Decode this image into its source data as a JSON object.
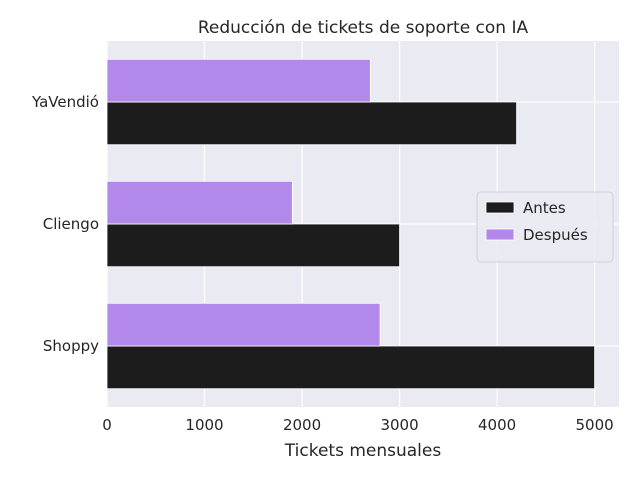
{
  "chart_data": {
    "type": "bar",
    "orientation": "horizontal",
    "title": "Reducción de tickets de soporte con IA",
    "xlabel": "Tickets mensuales",
    "ylabel": "",
    "categories": [
      "Shoppy",
      "Cliengo",
      "YaVendió"
    ],
    "series": [
      {
        "name": "Antes",
        "values": [
          5000,
          3000,
          4200
        ],
        "color": "#1c1c1c"
      },
      {
        "name": "Después",
        "values": [
          2800,
          1900,
          2700
        ],
        "color": "#b388eb"
      }
    ],
    "xlim": [
      0,
      5250
    ],
    "xticks": [
      0,
      1000,
      2000,
      3000,
      4000,
      5000
    ],
    "grid": true,
    "legend_position": "center-right",
    "background": "#eaeaf2"
  }
}
